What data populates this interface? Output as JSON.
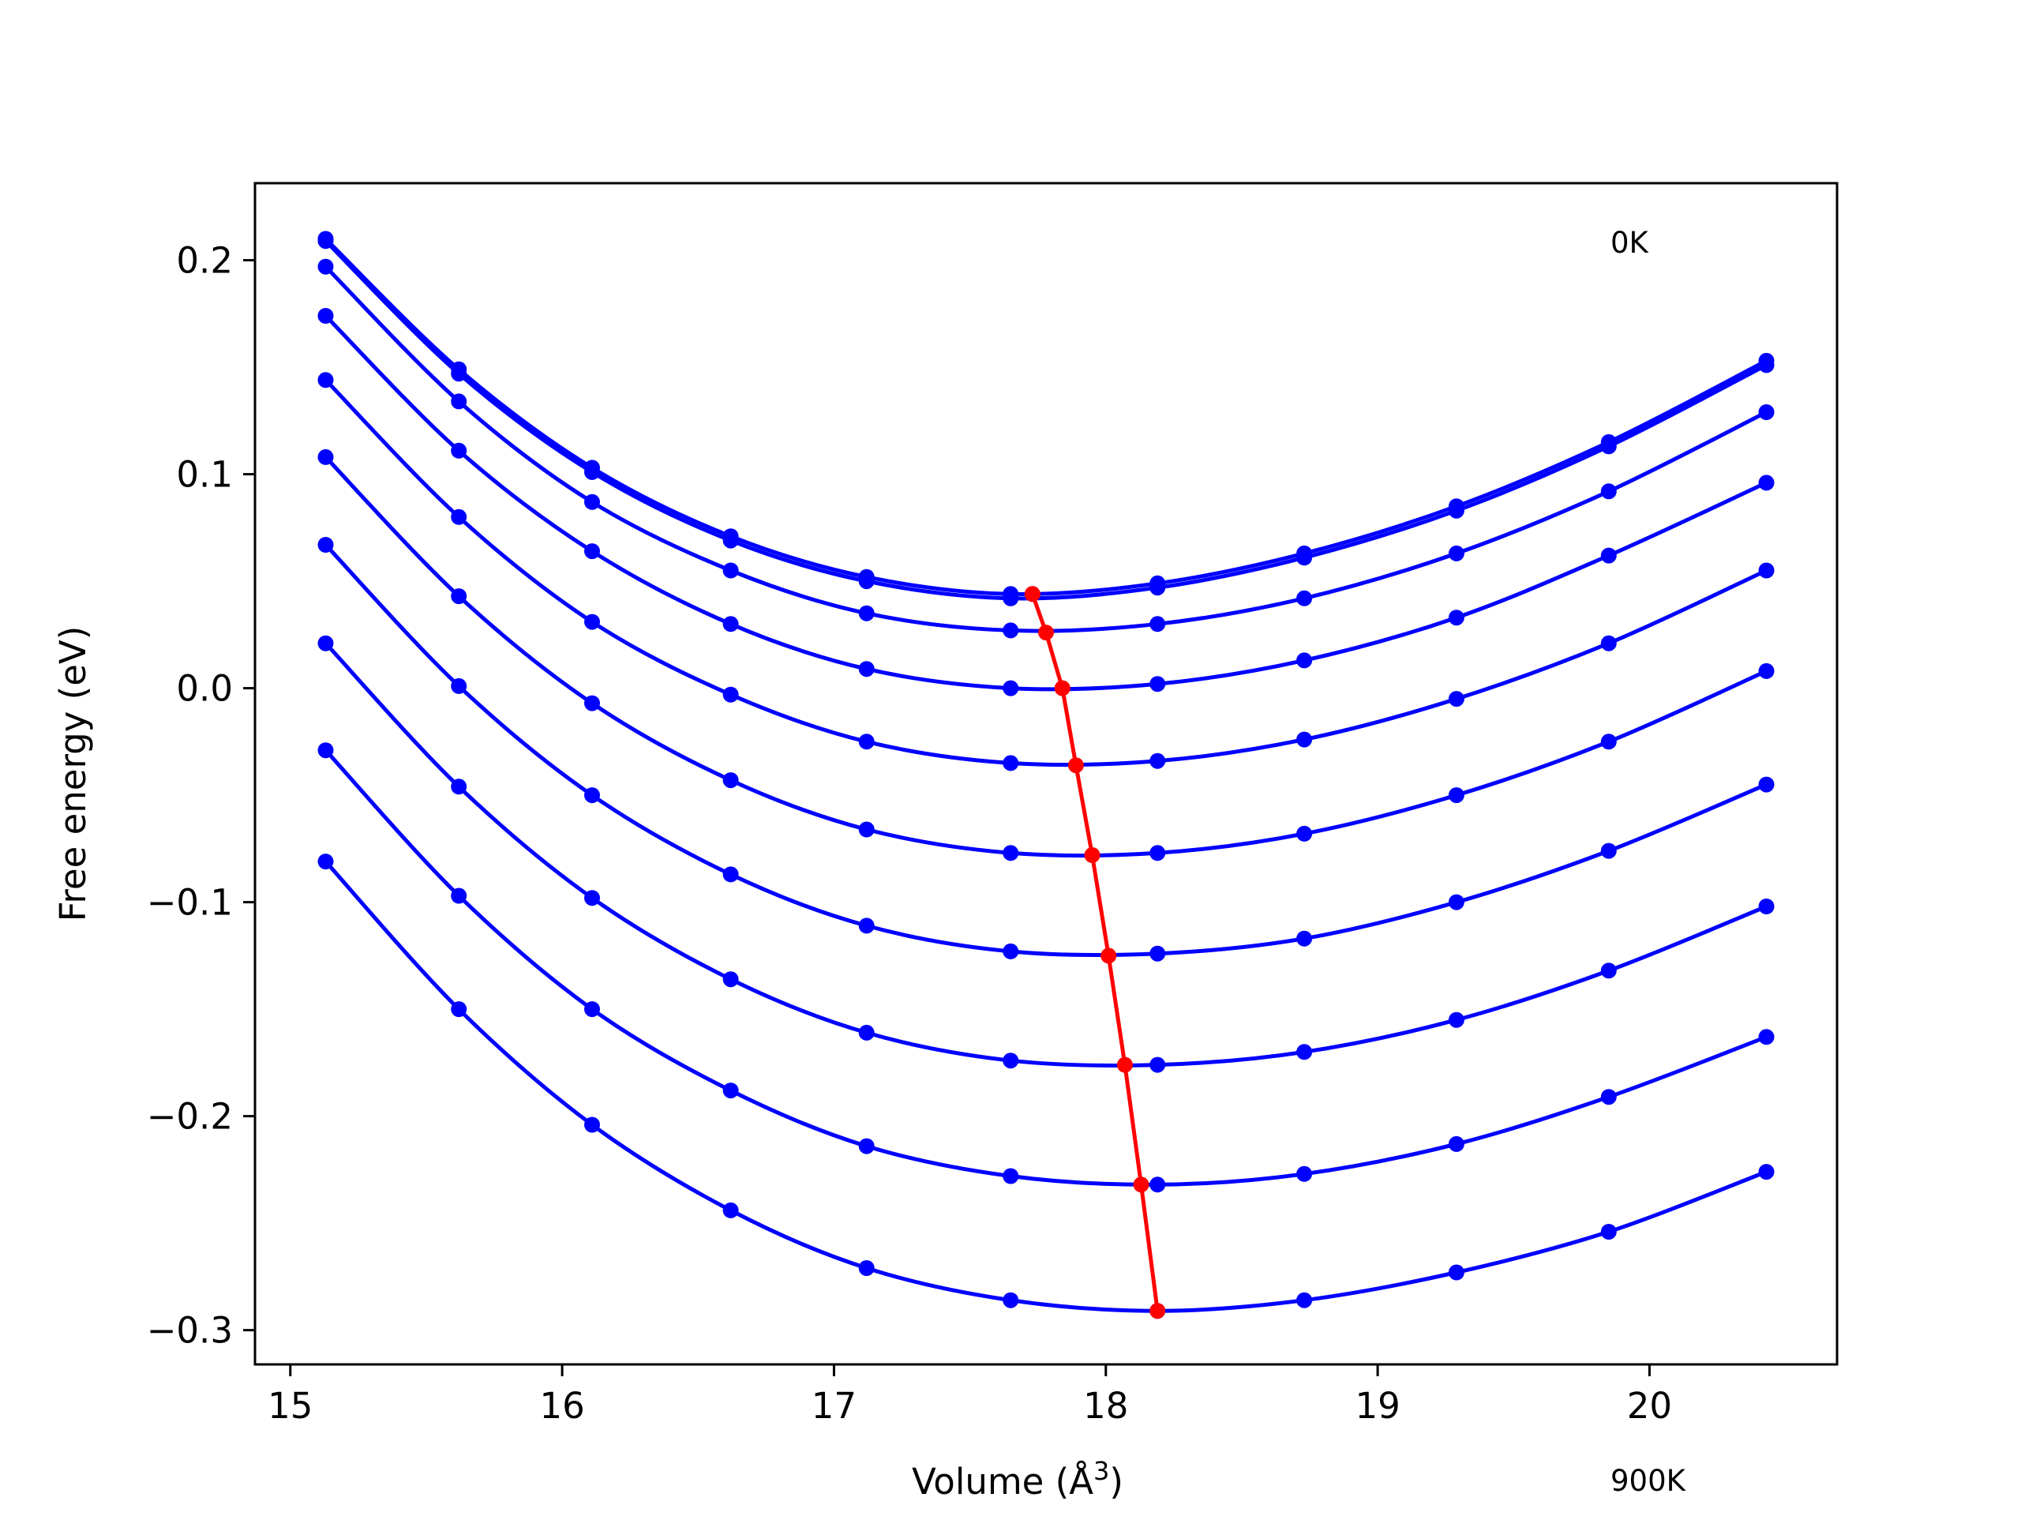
{
  "chart_data": {
    "type": "line",
    "title": "",
    "xlabel": "Volume (Å",
    "xlabel_sup": "3",
    "xlabel_close": ")",
    "ylabel": "Free energy (eV)",
    "xlim": [
      14.87,
      20.69
    ],
    "ylim": [
      -0.316,
      0.236
    ],
    "xticks": [
      15,
      16,
      17,
      18,
      19,
      20
    ],
    "xtick_labels": [
      "15",
      "16",
      "17",
      "18",
      "19",
      "20"
    ],
    "yticks": [
      -0.3,
      -0.2,
      -0.1,
      0.0,
      0.1,
      0.2
    ],
    "ytick_labels": [
      "−0.3",
      "−0.2",
      "−0.1",
      "0.0",
      "0.1",
      "0.2"
    ],
    "grid": false,
    "annotations": [
      "0K",
      "900K"
    ],
    "colors": {
      "curves": "#0000ff",
      "minima": "#ff0000",
      "frame": "#000000"
    },
    "x": [
      15.13,
      15.62,
      16.11,
      16.62,
      17.12,
      17.65,
      18.19,
      18.73,
      19.29,
      19.85,
      20.43
    ],
    "series": [
      {
        "values": [
          0.21,
          0.149,
          0.103,
          0.071,
          0.052,
          0.044,
          0.049,
          0.063,
          0.085,
          0.115,
          0.153
        ]
      },
      {
        "values": [
          0.209,
          0.147,
          0.101,
          0.069,
          0.05,
          0.042,
          0.047,
          0.061,
          0.083,
          0.113,
          0.151
        ]
      },
      {
        "values": [
          0.197,
          0.134,
          0.087,
          0.055,
          0.035,
          0.027,
          0.03,
          0.042,
          0.063,
          0.092,
          0.129
        ]
      },
      {
        "values": [
          0.174,
          0.111,
          0.064,
          0.03,
          0.009,
          0.0,
          0.002,
          0.013,
          0.033,
          0.062,
          0.096
        ]
      },
      {
        "values": [
          0.144,
          0.08,
          0.031,
          -0.003,
          -0.025,
          -0.035,
          -0.034,
          -0.024,
          -0.005,
          0.021,
          0.055
        ]
      },
      {
        "values": [
          0.108,
          0.043,
          -0.007,
          -0.043,
          -0.066,
          -0.077,
          -0.077,
          -0.068,
          -0.05,
          -0.025,
          0.008
        ]
      },
      {
        "values": [
          0.067,
          0.001,
          -0.05,
          -0.087,
          -0.111,
          -0.123,
          -0.124,
          -0.117,
          -0.1,
          -0.076,
          -0.045
        ]
      },
      {
        "values": [
          0.021,
          -0.046,
          -0.098,
          -0.136,
          -0.161,
          -0.174,
          -0.176,
          -0.17,
          -0.155,
          -0.132,
          -0.102
        ]
      },
      {
        "values": [
          -0.029,
          -0.097,
          -0.15,
          -0.188,
          -0.214,
          -0.228,
          -0.232,
          -0.227,
          -0.213,
          -0.191,
          -0.163
        ]
      },
      {
        "values": [
          -0.081,
          -0.15,
          -0.204,
          -0.244,
          -0.271,
          -0.286,
          -0.291,
          -0.286,
          -0.273,
          -0.254,
          -0.226
        ]
      }
    ],
    "minima": {
      "x": [
        17.73,
        17.73,
        17.78,
        17.84,
        17.89,
        17.95,
        18.01,
        18.07,
        18.13,
        18.19
      ],
      "y": [
        0.044,
        0.044,
        0.026,
        0.0,
        -0.036,
        -0.078,
        -0.125,
        -0.176,
        -0.232,
        -0.291
      ]
    }
  }
}
